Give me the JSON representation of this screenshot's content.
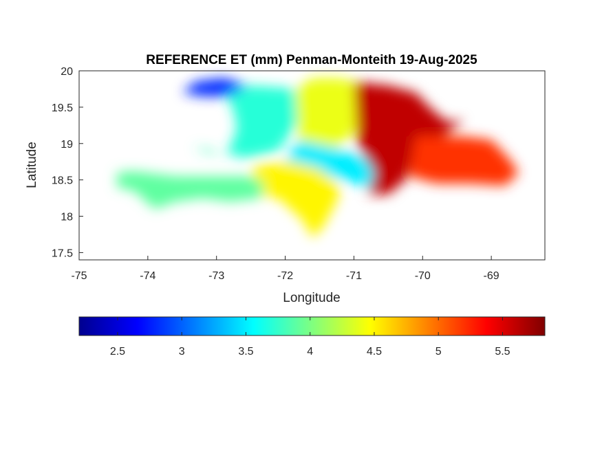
{
  "chart_data": {
    "type": "heatmap",
    "title": "REFERENCE ET (mm) Penman-Monteith 19-Aug-2025",
    "xlabel": "Longitude",
    "ylabel": "Latitude",
    "xlim": [
      -75,
      -68.22
    ],
    "ylim": [
      17.4,
      20
    ],
    "x_ticks": [
      -75,
      -74,
      -73,
      -72,
      -71,
      -70,
      -69
    ],
    "x_tick_labels": [
      "-75",
      "-74",
      "-73",
      "-72",
      "-71",
      "-70",
      "-69"
    ],
    "y_ticks": [
      17.5,
      18,
      18.5,
      19,
      19.5,
      20
    ],
    "y_tick_labels": [
      "17.5",
      "18",
      "18.5",
      "19",
      "19.5",
      "20"
    ],
    "grid": false,
    "colormap": "jet",
    "colorbar": {
      "orientation": "horizontal",
      "location": "bottom",
      "range": [
        2.2,
        5.83
      ],
      "ticks": [
        2.5,
        3,
        3.5,
        4,
        4.5,
        5,
        5.5
      ],
      "tick_labels": [
        "2.5",
        "3",
        "3.5",
        "4",
        "4.5",
        "5",
        "5.5"
      ]
    },
    "regions": [
      {
        "name": "",
        "value": 2.8,
        "points": [
          [
            -73.5,
            19.7
          ],
          [
            -73.3,
            19.85
          ],
          [
            -72.9,
            19.9
          ],
          [
            -72.55,
            19.8
          ],
          [
            -72.8,
            19.65
          ],
          [
            -73.2,
            19.65
          ]
        ]
      },
      {
        "name": "",
        "value": 3.7,
        "points": [
          [
            -72.85,
            19.65
          ],
          [
            -72.5,
            19.8
          ],
          [
            -72.2,
            19.78
          ],
          [
            -71.85,
            19.75
          ],
          [
            -71.8,
            19.3
          ],
          [
            -72.1,
            18.9
          ],
          [
            -72.55,
            18.8
          ],
          [
            -72.85,
            18.85
          ],
          [
            -72.7,
            19.2
          ],
          [
            -72.75,
            19.45
          ]
        ]
      },
      {
        "name": "",
        "value": 4.4,
        "points": [
          [
            -71.85,
            19.75
          ],
          [
            -71.6,
            19.9
          ],
          [
            -71.2,
            19.9
          ],
          [
            -71.0,
            19.85
          ],
          [
            -70.95,
            19.2
          ],
          [
            -71.3,
            18.9
          ],
          [
            -71.8,
            19.0
          ]
        ]
      },
      {
        "name": "",
        "value": 3.5,
        "points": [
          [
            -71.8,
            19.05
          ],
          [
            -71.3,
            18.95
          ],
          [
            -71.0,
            18.85
          ],
          [
            -70.7,
            18.75
          ],
          [
            -70.5,
            18.55
          ],
          [
            -70.8,
            18.4
          ],
          [
            -71.5,
            18.6
          ],
          [
            -72.0,
            18.75
          ]
        ]
      },
      {
        "name": "",
        "value": 5.6,
        "points": [
          [
            -71.0,
            19.85
          ],
          [
            -70.5,
            19.8
          ],
          [
            -70.1,
            19.7
          ],
          [
            -69.9,
            19.5
          ],
          [
            -69.65,
            19.3
          ],
          [
            -69.4,
            19.32
          ],
          [
            -69.7,
            19.1
          ],
          [
            -70.1,
            18.9
          ],
          [
            -70.25,
            18.5
          ],
          [
            -70.5,
            18.3
          ],
          [
            -70.8,
            18.3
          ],
          [
            -70.7,
            18.6
          ],
          [
            -70.95,
            19.0
          ]
        ]
      },
      {
        "name": "",
        "value": 5.2,
        "points": [
          [
            -70.1,
            19.1
          ],
          [
            -69.8,
            19.1
          ],
          [
            -69.4,
            19.1
          ],
          [
            -69.0,
            19.05
          ],
          [
            -68.75,
            18.8
          ],
          [
            -68.6,
            18.6
          ],
          [
            -68.8,
            18.42
          ],
          [
            -69.3,
            18.45
          ],
          [
            -69.8,
            18.45
          ],
          [
            -70.2,
            18.55
          ]
        ]
      },
      {
        "name": "",
        "value": 4.5,
        "points": [
          [
            -72.45,
            18.7
          ],
          [
            -71.9,
            18.75
          ],
          [
            -71.5,
            18.65
          ],
          [
            -71.2,
            18.4
          ],
          [
            -71.25,
            18.2
          ],
          [
            -71.45,
            17.85
          ],
          [
            -71.6,
            17.7
          ],
          [
            -71.75,
            17.95
          ],
          [
            -72.1,
            18.25
          ],
          [
            -72.5,
            18.3
          ]
        ]
      },
      {
        "name": "",
        "value": 3.9,
        "points": [
          [
            -74.45,
            18.6
          ],
          [
            -74.2,
            18.62
          ],
          [
            -73.6,
            18.55
          ],
          [
            -73.0,
            18.55
          ],
          [
            -72.5,
            18.55
          ],
          [
            -72.3,
            18.45
          ],
          [
            -72.35,
            18.25
          ],
          [
            -72.8,
            18.2
          ],
          [
            -73.2,
            18.25
          ],
          [
            -73.6,
            18.2
          ],
          [
            -73.9,
            18.1
          ],
          [
            -74.2,
            18.35
          ],
          [
            -74.45,
            18.4
          ]
        ]
      },
      {
        "name": "",
        "value": 3.8,
        "points": [
          [
            -73.35,
            18.95
          ],
          [
            -73.1,
            18.92
          ],
          [
            -72.9,
            18.85
          ],
          [
            -73.15,
            18.88
          ]
        ]
      }
    ]
  }
}
